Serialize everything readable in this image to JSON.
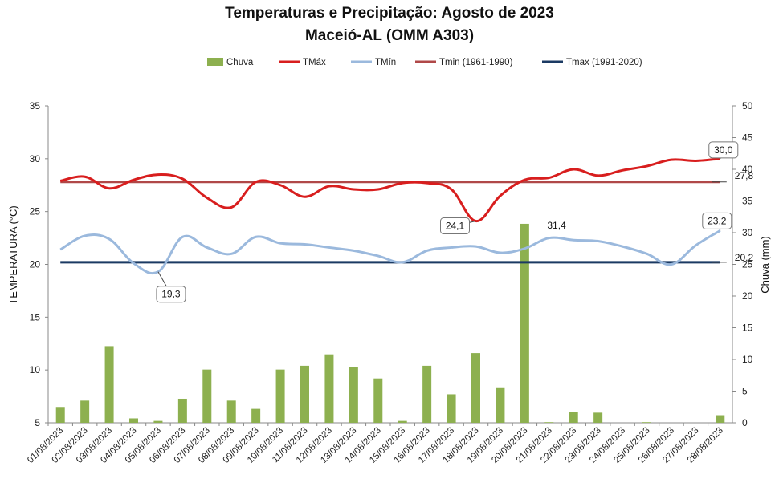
{
  "chart_data": {
    "type": "bar+line",
    "title": "Temperaturas e Precipitação: Agosto de 2023",
    "subtitle": "Maceió-AL (OMM A303)",
    "ylabel": "TEMPERATURA (°C)",
    "y2label": "Chuva (mm)",
    "ylim": [
      5,
      35
    ],
    "y2lim": [
      0,
      50
    ],
    "yticks": [
      "5",
      "10",
      "15",
      "20",
      "25",
      "30",
      "35"
    ],
    "y2ticks": [
      "0",
      "5",
      "10",
      "15",
      "20",
      "25",
      "30",
      "35",
      "40",
      "45",
      "50"
    ],
    "categories": [
      "01/08/2023",
      "02/08/2023",
      "03/08/2023",
      "04/08/2023",
      "05/08/2023",
      "06/08/2023",
      "07/08/2023",
      "08/08/2023",
      "09/08/2023",
      "10/08/2023",
      "11/08/2023",
      "12/08/2023",
      "13/08/2023",
      "14/08/2023",
      "15/08/2023",
      "16/08/2023",
      "17/08/2023",
      "18/08/2023",
      "19/08/2023",
      "20/08/2023",
      "21/08/2023",
      "22/08/2023",
      "23/08/2023",
      "24/08/2023",
      "25/08/2023",
      "26/08/2023",
      "27/08/2023",
      "28/08/2023"
    ],
    "series": [
      {
        "name": "Chuva",
        "type": "bar",
        "axis": "right",
        "color": "#8db04f",
        "values": [
          2.5,
          3.5,
          12.1,
          0.7,
          0.3,
          3.8,
          8.4,
          3.5,
          2.2,
          8.4,
          9.0,
          10.8,
          8.8,
          7.0,
          0.3,
          9.0,
          4.5,
          11.0,
          5.6,
          31.4,
          0.1,
          1.7,
          1.6,
          0,
          0.1,
          0,
          0,
          1.2
        ]
      },
      {
        "name": "TMáx",
        "type": "line",
        "axis": "left",
        "color": "#d81e1e",
        "values": [
          27.9,
          28.3,
          27.2,
          28.0,
          28.5,
          28.1,
          26.3,
          25.4,
          27.8,
          27.5,
          26.4,
          27.4,
          27.1,
          27.1,
          27.7,
          27.7,
          27.1,
          24.1,
          26.5,
          28.0,
          28.2,
          29.0,
          28.4,
          28.9,
          29.3,
          29.9,
          29.8,
          30.0
        ]
      },
      {
        "name": "TMín",
        "type": "line",
        "axis": "left",
        "color": "#9bb9dd",
        "values": [
          21.4,
          22.7,
          22.4,
          20.1,
          19.3,
          22.6,
          21.6,
          21.0,
          22.6,
          22.0,
          21.9,
          21.6,
          21.3,
          20.8,
          20.2,
          21.3,
          21.6,
          21.7,
          21.1,
          21.5,
          22.5,
          22.3,
          22.2,
          21.7,
          21.0,
          20.0,
          21.8,
          23.2
        ]
      },
      {
        "name": "Tmin (1961-1990)",
        "type": "line",
        "axis": "left",
        "color": "#b04848",
        "constant": 27.8
      },
      {
        "name": "Tmax (1991-2020)",
        "type": "line",
        "axis": "left",
        "color": "#1b3a63",
        "constant": 20.2
      }
    ],
    "annotations": [
      {
        "text": "30,0",
        "series": "TMáx",
        "index": 27
      },
      {
        "text": "27,8",
        "series": "Tmin (1961-1990)",
        "index": 27
      },
      {
        "text": "23,2",
        "series": "TMín",
        "index": 27
      },
      {
        "text": "20,2",
        "series": "Tmax (1991-2020)",
        "index": 27
      },
      {
        "text": "19,3",
        "series": "TMín",
        "index": 4
      },
      {
        "text": "24,1",
        "series": "TMáx",
        "index": 17
      },
      {
        "text": "31,4",
        "series": "Chuva",
        "index": 19
      }
    ],
    "legend_position": "top"
  }
}
